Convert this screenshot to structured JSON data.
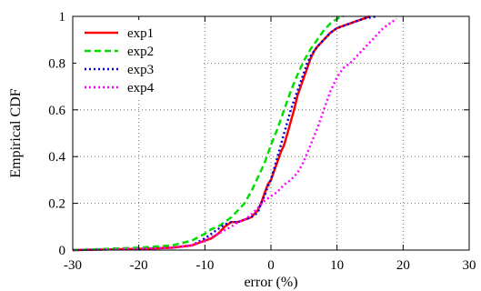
{
  "chart_data": {
    "type": "line",
    "title": "",
    "xlabel": "error (%)",
    "ylabel": "Empirical CDF",
    "xlim": [
      -30,
      30
    ],
    "ylim": [
      0,
      1
    ],
    "xticks": [
      "-30",
      "-20",
      "-10",
      "0",
      "10",
      "20",
      "30"
    ],
    "yticks": [
      "0",
      "0.2",
      "0.4",
      "0.6",
      "0.8",
      "1"
    ],
    "grid": "dotted",
    "legend_position": "top-left",
    "series": [
      {
        "name": "exp1",
        "color": "#ff0000",
        "dash": "solid",
        "points": [
          [
            -30,
            0
          ],
          [
            -20,
            0.005
          ],
          [
            -15,
            0.01
          ],
          [
            -12,
            0.02
          ],
          [
            -10,
            0.04
          ],
          [
            -9,
            0.05
          ],
          [
            -8,
            0.07
          ],
          [
            -7,
            0.1
          ],
          [
            -6,
            0.12
          ],
          [
            -5,
            0.12
          ],
          [
            -4,
            0.13
          ],
          [
            -3,
            0.14
          ],
          [
            -2,
            0.17
          ],
          [
            -1.5,
            0.2
          ],
          [
            -1,
            0.24
          ],
          [
            -0.5,
            0.28
          ],
          [
            0,
            0.3
          ],
          [
            0.5,
            0.34
          ],
          [
            1,
            0.38
          ],
          [
            1.5,
            0.42
          ],
          [
            2,
            0.45
          ],
          [
            2.5,
            0.5
          ],
          [
            3,
            0.55
          ],
          [
            3.5,
            0.6
          ],
          [
            4,
            0.66
          ],
          [
            4.5,
            0.7
          ],
          [
            5,
            0.74
          ],
          [
            5.5,
            0.78
          ],
          [
            6,
            0.82
          ],
          [
            6.5,
            0.85
          ],
          [
            7,
            0.87
          ],
          [
            8,
            0.9
          ],
          [
            9,
            0.93
          ],
          [
            10,
            0.95
          ],
          [
            12,
            0.97
          ],
          [
            14,
            0.99
          ],
          [
            15,
            1.0
          ]
        ]
      },
      {
        "name": "exp2",
        "color": "#00dd00",
        "dash": "dashed",
        "points": [
          [
            -30,
            0
          ],
          [
            -25,
            0.005
          ],
          [
            -20,
            0.01
          ],
          [
            -15,
            0.02
          ],
          [
            -12,
            0.04
          ],
          [
            -10,
            0.07
          ],
          [
            -9,
            0.09
          ],
          [
            -8,
            0.1
          ],
          [
            -7,
            0.12
          ],
          [
            -6,
            0.14
          ],
          [
            -5,
            0.17
          ],
          [
            -4,
            0.2
          ],
          [
            -3,
            0.25
          ],
          [
            -2,
            0.31
          ],
          [
            -1,
            0.37
          ],
          [
            0,
            0.45
          ],
          [
            1,
            0.52
          ],
          [
            2,
            0.6
          ],
          [
            3,
            0.68
          ],
          [
            4,
            0.75
          ],
          [
            5,
            0.81
          ],
          [
            6,
            0.86
          ],
          [
            7,
            0.9
          ],
          [
            8,
            0.94
          ],
          [
            9,
            0.97
          ],
          [
            10,
            0.99
          ],
          [
            11,
            1.0
          ]
        ]
      },
      {
        "name": "exp3",
        "color": "#0000dd",
        "dash": "dotted",
        "points": [
          [
            -30,
            0
          ],
          [
            -20,
            0.005
          ],
          [
            -15,
            0.01
          ],
          [
            -12,
            0.02
          ],
          [
            -10,
            0.05
          ],
          [
            -9,
            0.07
          ],
          [
            -8,
            0.09
          ],
          [
            -7,
            0.11
          ],
          [
            -6,
            0.12
          ],
          [
            -5,
            0.12
          ],
          [
            -4,
            0.13
          ],
          [
            -3,
            0.14
          ],
          [
            -2,
            0.16
          ],
          [
            -1.5,
            0.2
          ],
          [
            -1,
            0.23
          ],
          [
            -0.5,
            0.27
          ],
          [
            0,
            0.3
          ],
          [
            0.5,
            0.35
          ],
          [
            1,
            0.4
          ],
          [
            1.5,
            0.45
          ],
          [
            2,
            0.5
          ],
          [
            2.5,
            0.55
          ],
          [
            3,
            0.6
          ],
          [
            3.5,
            0.64
          ],
          [
            4,
            0.68
          ],
          [
            4.5,
            0.72
          ],
          [
            5,
            0.76
          ],
          [
            5.5,
            0.8
          ],
          [
            6,
            0.83
          ],
          [
            7,
            0.87
          ],
          [
            8,
            0.9
          ],
          [
            9,
            0.93
          ],
          [
            10,
            0.95
          ],
          [
            12,
            0.97
          ],
          [
            14,
            0.99
          ],
          [
            16,
            1.0
          ]
        ]
      },
      {
        "name": "exp4",
        "color": "#ff00ff",
        "dash": "dotted",
        "points": [
          [
            -30,
            0
          ],
          [
            -20,
            0.005
          ],
          [
            -15,
            0.01
          ],
          [
            -12,
            0.02
          ],
          [
            -10,
            0.04
          ],
          [
            -8,
            0.07
          ],
          [
            -6,
            0.1
          ],
          [
            -5,
            0.12
          ],
          [
            -4,
            0.13
          ],
          [
            -3,
            0.15
          ],
          [
            -2,
            0.18
          ],
          [
            -1,
            0.21
          ],
          [
            0,
            0.23
          ],
          [
            1,
            0.25
          ],
          [
            2,
            0.28
          ],
          [
            3,
            0.3
          ],
          [
            4,
            0.33
          ],
          [
            5,
            0.38
          ],
          [
            6,
            0.45
          ],
          [
            7,
            0.52
          ],
          [
            8,
            0.6
          ],
          [
            9,
            0.68
          ],
          [
            10,
            0.74
          ],
          [
            11,
            0.78
          ],
          [
            12,
            0.8
          ],
          [
            13,
            0.83
          ],
          [
            14,
            0.86
          ],
          [
            15,
            0.89
          ],
          [
            16,
            0.92
          ],
          [
            17,
            0.95
          ],
          [
            18,
            0.97
          ],
          [
            19,
            0.99
          ]
        ]
      }
    ]
  }
}
